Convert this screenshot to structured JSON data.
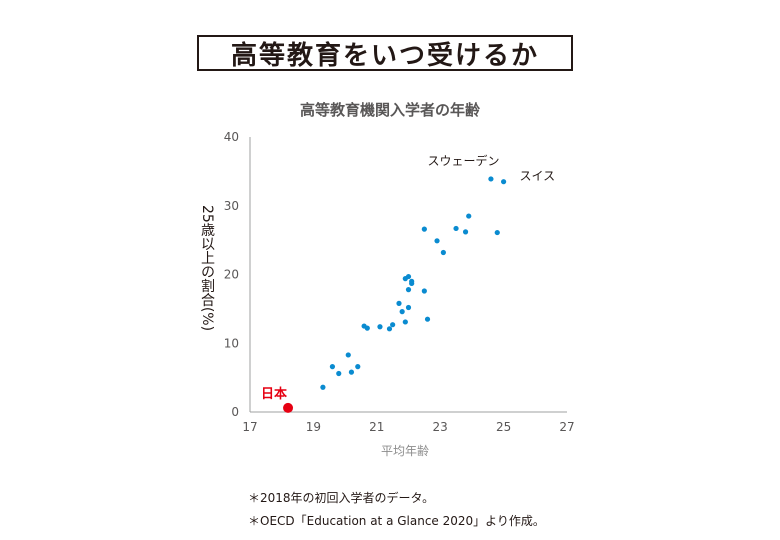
{
  "header": {
    "title": "高等教育をいつ受けるか"
  },
  "chart_data": {
    "type": "scatter",
    "title": "高等教育機関入学者の年齢",
    "xlabel": "平均年齢",
    "ylabel": "25歳以上の割合(%)",
    "xlim": [
      17,
      27
    ],
    "ylim": [
      0,
      40
    ],
    "xticks": [
      "17",
      "19",
      "21",
      "23",
      "25",
      "27"
    ],
    "yticks": [
      "0",
      "10",
      "20",
      "30",
      "40"
    ],
    "grid": false,
    "point_color": "#0a8bd0",
    "highlight_color": "#e60012",
    "points": [
      {
        "x": 19.3,
        "y": 3.6
      },
      {
        "x": 19.6,
        "y": 6.6
      },
      {
        "x": 19.8,
        "y": 5.6
      },
      {
        "x": 20.1,
        "y": 8.3
      },
      {
        "x": 20.2,
        "y": 5.8
      },
      {
        "x": 20.4,
        "y": 6.6
      },
      {
        "x": 20.6,
        "y": 12.5
      },
      {
        "x": 20.7,
        "y": 12.2
      },
      {
        "x": 21.1,
        "y": 12.4
      },
      {
        "x": 21.4,
        "y": 12.1
      },
      {
        "x": 21.5,
        "y": 12.7
      },
      {
        "x": 21.7,
        "y": 15.8
      },
      {
        "x": 21.8,
        "y": 14.6
      },
      {
        "x": 21.9,
        "y": 13.1
      },
      {
        "x": 21.9,
        "y": 19.4
      },
      {
        "x": 22.0,
        "y": 17.8
      },
      {
        "x": 22.0,
        "y": 15.2
      },
      {
        "x": 22.0,
        "y": 19.7
      },
      {
        "x": 22.1,
        "y": 18.7
      },
      {
        "x": 22.1,
        "y": 19.0
      },
      {
        "x": 22.5,
        "y": 17.6
      },
      {
        "x": 22.5,
        "y": 26.6
      },
      {
        "x": 22.6,
        "y": 13.5
      },
      {
        "x": 22.9,
        "y": 24.9
      },
      {
        "x": 23.1,
        "y": 23.2
      },
      {
        "x": 23.5,
        "y": 26.7
      },
      {
        "x": 23.8,
        "y": 26.2
      },
      {
        "x": 23.9,
        "y": 28.5
      },
      {
        "x": 24.6,
        "y": 33.9
      },
      {
        "x": 24.8,
        "y": 26.1
      },
      {
        "x": 25.0,
        "y": 33.5
      }
    ],
    "highlight": {
      "label": "日本",
      "x": 18.2,
      "y": 0.6
    },
    "annotations": [
      {
        "text": "スウェーデン",
        "x": 22.6,
        "y": 36.5
      },
      {
        "text": "スイス",
        "x": 25.5,
        "y": 34.3
      }
    ]
  },
  "notes": [
    "＊2018年の初回入学者のデータ。",
    "＊OECD「Education at a Glance 2020」より作成。"
  ]
}
